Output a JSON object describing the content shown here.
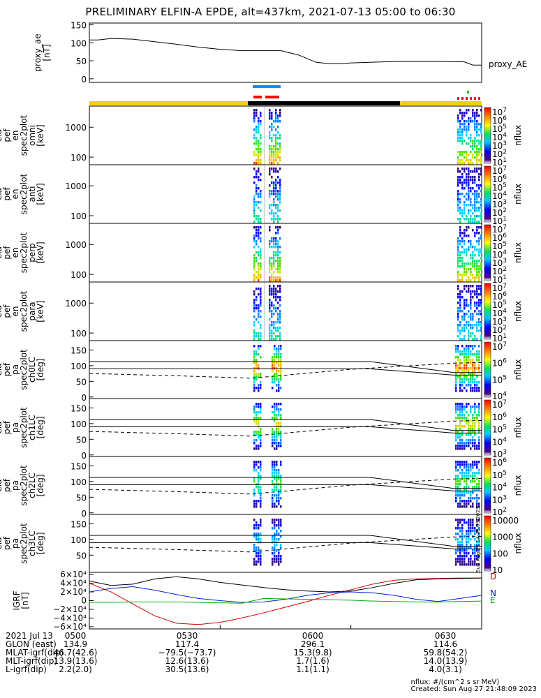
{
  "title": "PRELIMINARY ELFIN-A EPDE, alt=437km, 2021-07-13 05:00 to 06:30",
  "chart_data": [
    {
      "type": "line",
      "panel": "proxy_ae",
      "ylabel_lines": [
        "proxy_ae",
        "[nT]"
      ],
      "legend": "proxy_AE",
      "y_ticks": [
        "150",
        "100",
        "50",
        "0"
      ],
      "ylim": [
        -10,
        155
      ],
      "series": [
        {
          "x_min": [
            0,
            2,
            5,
            10,
            15,
            20,
            25,
            30,
            35,
            40,
            44,
            48,
            52,
            55,
            58,
            60,
            65,
            70,
            75,
            80,
            82,
            86,
            88,
            90
          ],
          "y": [
            108,
            108,
            112,
            110,
            103,
            96,
            88,
            82,
            78,
            78,
            78,
            66,
            46,
            42,
            42,
            44,
            46,
            48,
            48,
            48,
            48,
            47,
            38,
            38
          ]
        }
      ]
    },
    {
      "type": "heatmap",
      "panel": "ela_pef_en_spec2plot_omni",
      "ylabel_lines": [
        "ela",
        "pef",
        "en",
        "spec2plot",
        "omni",
        "[keV]"
      ],
      "y_ticks": [
        "1000",
        "100"
      ],
      "colorbar_label": "nflux",
      "colorbar_ticks": [
        "10^7",
        "10^6",
        "10^5",
        "10^4",
        "10^3",
        "10^2",
        "10^1"
      ]
    },
    {
      "type": "heatmap",
      "panel": "ela_pef_en_spec2plot_anti",
      "ylabel_lines": [
        "ela",
        "pef",
        "en",
        "spec2plot",
        "anti",
        "[keV]"
      ],
      "y_ticks": [
        "1000",
        "100"
      ],
      "colorbar_label": "nflux",
      "colorbar_ticks": [
        "10^7",
        "10^6",
        "10^5",
        "10^4",
        "10^3",
        "10^2",
        "10^1"
      ]
    },
    {
      "type": "heatmap",
      "panel": "ela_pef_en_spec2plot_perp",
      "ylabel_lines": [
        "ela",
        "pef",
        "en",
        "spec2plot",
        "perp",
        "[keV]"
      ],
      "y_ticks": [
        "1000",
        "100"
      ],
      "colorbar_label": "nflux",
      "colorbar_ticks": [
        "10^7",
        "10^6",
        "10^5",
        "10^4",
        "10^3",
        "10^2",
        "10^1"
      ]
    },
    {
      "type": "heatmap",
      "panel": "ela_pef_en_spec2plot_para",
      "ylabel_lines": [
        "ela",
        "pef",
        "en",
        "spec2plot",
        "para",
        "[keV]"
      ],
      "y_ticks": [
        "1000",
        "100"
      ],
      "colorbar_label": "nflux",
      "colorbar_ticks": [
        "10^7",
        "10^6",
        "10^5",
        "10^4",
        "10^3",
        "10^2",
        "10^1"
      ]
    },
    {
      "type": "heatmap",
      "panel": "ela_pef_pa_spec2plot_ch0LC",
      "ylabel_lines": [
        "ela",
        "pef",
        "pa",
        "spec2plot",
        "ch0LC",
        "[deg]"
      ],
      "y_ticks": [
        "150",
        "100",
        "50",
        "0"
      ],
      "colorbar_label": "nflux",
      "colorbar_ticks": [
        "10^7",
        "10^6",
        "10^5",
        "10^4"
      ]
    },
    {
      "type": "heatmap",
      "panel": "ela_pef_pa_spec2plot_ch1LC",
      "ylabel_lines": [
        "ela",
        "pef",
        "pa",
        "spec2plot",
        "ch1LC",
        "[deg]"
      ],
      "y_ticks": [
        "150",
        "100",
        "50",
        "0"
      ],
      "colorbar_label": "nflux",
      "colorbar_ticks": [
        "10^7",
        "10^6",
        "10^5",
        "10^4",
        "10^3"
      ]
    },
    {
      "type": "heatmap",
      "panel": "ela_pef_pa_spec2plot_ch2LC",
      "ylabel_lines": [
        "ela",
        "pef",
        "pa",
        "spec2plot",
        "ch2LC",
        "[deg]"
      ],
      "y_ticks": [
        "150",
        "100",
        "50",
        "0"
      ],
      "colorbar_label": "nflux",
      "colorbar_ticks": [
        "10^6",
        "10^5",
        "10^4",
        "10^3",
        "10^2"
      ]
    },
    {
      "type": "heatmap",
      "panel": "ela_pef_pa_spec2plot_ch3LC",
      "ylabel_lines": [
        "ela",
        "pef",
        "pa",
        "spec2plot",
        "ch3LC",
        "[deg]"
      ],
      "y_ticks": [
        "150",
        "100",
        "50"
      ],
      "colorbar_label": "nflux",
      "colorbar_ticks": [
        "10000",
        "1000",
        "100",
        "10"
      ]
    },
    {
      "type": "line",
      "panel": "IGRF",
      "ylabel_lines": [
        "IGRF",
        "[nT]"
      ],
      "y_ticks": [
        "6×10⁴",
        "4×10⁴",
        "2×10⁴",
        "0",
        "−2×10⁴",
        "−4×10⁴",
        "−6×10⁴"
      ],
      "ylim": [
        -65000,
        65000
      ],
      "legend": [
        "D",
        "N",
        "E"
      ],
      "series": [
        {
          "name": "D",
          "color": "#d00000",
          "x_min": [
            0,
            5,
            10,
            15,
            20,
            25,
            30,
            35,
            40,
            45,
            50,
            55,
            60,
            65,
            70,
            75,
            80,
            85,
            90
          ],
          "y": [
            40000,
            20000,
            -8000,
            -35000,
            -52000,
            -55000,
            -50000,
            -40000,
            -28000,
            -15000,
            -2000,
            12000,
            25000,
            38000,
            47000,
            50000,
            51000,
            52000,
            52000
          ]
        },
        {
          "name": "N",
          "color": "#0020d0",
          "x_min": [
            0,
            5,
            10,
            15,
            20,
            25,
            30,
            35,
            40,
            45,
            50,
            55,
            60,
            65,
            70,
            75,
            80,
            85,
            90
          ],
          "y": [
            20000,
            28000,
            32000,
            24000,
            14000,
            5000,
            0,
            -4000,
            -3000,
            3000,
            12000,
            18000,
            20000,
            18000,
            12000,
            3000,
            -2000,
            5000,
            12000
          ]
        },
        {
          "name": "E",
          "color": "#00b000",
          "x_min": [
            0,
            5,
            10,
            15,
            20,
            25,
            30,
            35,
            40,
            45,
            50,
            55,
            60,
            65,
            70,
            75,
            80,
            85,
            90
          ],
          "y": [
            -4000,
            -4000,
            -3000,
            -3000,
            -3000,
            -4000,
            -5000,
            -6000,
            5000,
            4000,
            3000,
            2000,
            1000,
            -1000,
            -2000,
            -3000,
            -3000,
            -2000,
            -1000
          ]
        },
        {
          "name": "total",
          "color": "#000000",
          "x_min": [
            0,
            5,
            10,
            15,
            20,
            25,
            30,
            35,
            40,
            45,
            50,
            55,
            60,
            65,
            70,
            75,
            80,
            85,
            90
          ],
          "y": [
            45000,
            35000,
            38000,
            50000,
            55000,
            50000,
            42000,
            36000,
            30000,
            25000,
            22000,
            20000,
            22000,
            30000,
            40000,
            48000,
            50000,
            51000,
            52000
          ]
        }
      ]
    }
  ],
  "ephemeris": {
    "rows": [
      {
        "label": "2021 Jul 13",
        "values": [
          "0500",
          "0530",
          "0600",
          "0630"
        ]
      },
      {
        "label": "GLON (east)",
        "values": [
          "134.9",
          "117.4",
          "296.1",
          "114.6"
        ]
      },
      {
        "label": "MLAT-igrf(dip)",
        "values": [
          "46.7(42.6)",
          "−79.5(−73.7)",
          "15.3(9.8)",
          "59.8(54.2)"
        ]
      },
      {
        "label": "MLT-igrf(dip)",
        "values": [
          "13.9(13.6)",
          "12.6(13.6)",
          "1.7(1.6)",
          "14.0(13.9)"
        ]
      },
      {
        "label": "L-igrf(dip)",
        "values": [
          "2.2(2.0)",
          "30.5(13.6)",
          "1.1(1.1)",
          "4.0(3.1)"
        ]
      }
    ]
  },
  "footer": {
    "units": "nflux: #/(cm^2 s sr MeV)",
    "created": "Created: Sun Aug 27 21:48:09 2023"
  },
  "stamp": "Sun Aug 27 14:48:09 2023"
}
